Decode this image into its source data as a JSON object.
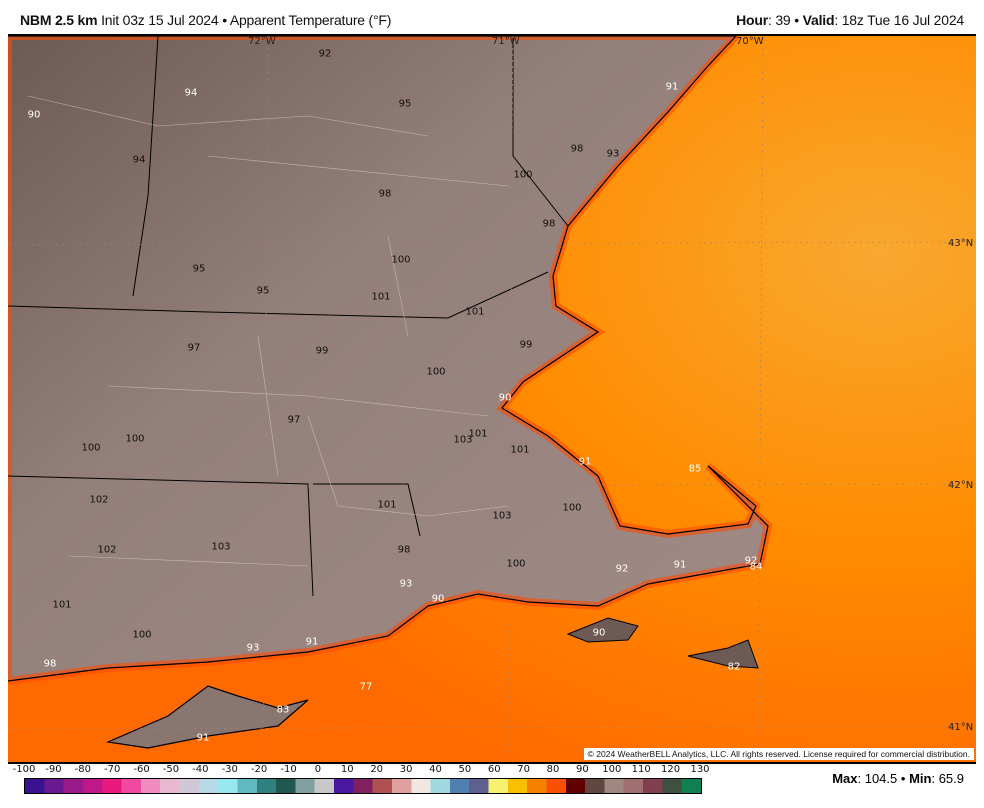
{
  "header": {
    "model": "NBM 2.5 km",
    "init": "Init 03z 15 Jul 2024",
    "sep": "•",
    "field": "Apparent Temperature (°F)",
    "hour_label": "Hour",
    "hour": ": 39",
    "valid_label": "Valid",
    "valid": ": 18z Tue 16 Jul 2024"
  },
  "map": {
    "graticule": [
      "72°W",
      "71°W",
      "70°W",
      "43°N",
      "42°N",
      "41°N"
    ],
    "values": [
      "92",
      "95",
      "94",
      "90",
      "94",
      "98",
      "93",
      "91",
      "100",
      "98",
      "98",
      "100",
      "95",
      "95",
      "101",
      "101",
      "97",
      "99",
      "99",
      "100",
      "90",
      "97",
      "100",
      "100",
      "103",
      "101",
      "101",
      "91",
      "85",
      "102",
      "101",
      "103",
      "100",
      "102",
      "103",
      "98",
      "100",
      "92",
      "91",
      "92",
      "84",
      "93",
      "90",
      "101",
      "100",
      "90",
      "93",
      "91",
      "98",
      "82",
      "77",
      "83",
      "91"
    ],
    "copyright": "© 2024 WeatherBELL Analytics, LLC. All rights reserved. License required for commercial distribution.",
    "colors": {
      "land": "#8e7b76",
      "ocean": "#ff8c00",
      "coast_warm": "#ff5a00",
      "offshore": "#f8a830"
    }
  },
  "legend": {
    "ticks": [
      "-100",
      "-90",
      "-80",
      "-70",
      "-60",
      "-50",
      "-40",
      "-30",
      "-20",
      "-10",
      "0",
      "10",
      "20",
      "30",
      "40",
      "50",
      "60",
      "70",
      "80",
      "90",
      "100",
      "110",
      "120",
      "130"
    ],
    "colors": [
      "#3a1190",
      "#6a1a90",
      "#9b1a8a",
      "#c01888",
      "#e81a80",
      "#f04aa0",
      "#f08cc0",
      "#e8b8d0",
      "#d0c8d8",
      "#b8d8e8",
      "#98e8f0",
      "#60b8c0",
      "#308080",
      "#205850",
      "#80a0a0",
      "#c8c8c8",
      "#4a18a0",
      "#802060",
      "#b05050",
      "#e0a0a0",
      "#f0e8e0",
      "#a0d8e0",
      "#5080b0",
      "#606090",
      "#f8f070",
      "#f8c000",
      "#f88000",
      "#f85000",
      "#600000",
      "#604840",
      "#a08880",
      "#a07070",
      "#804050",
      "#405040",
      "#108050"
    ],
    "max_label": "Max",
    "max": ": 104.5",
    "min_label": "Min",
    "min": ": 65.9"
  }
}
